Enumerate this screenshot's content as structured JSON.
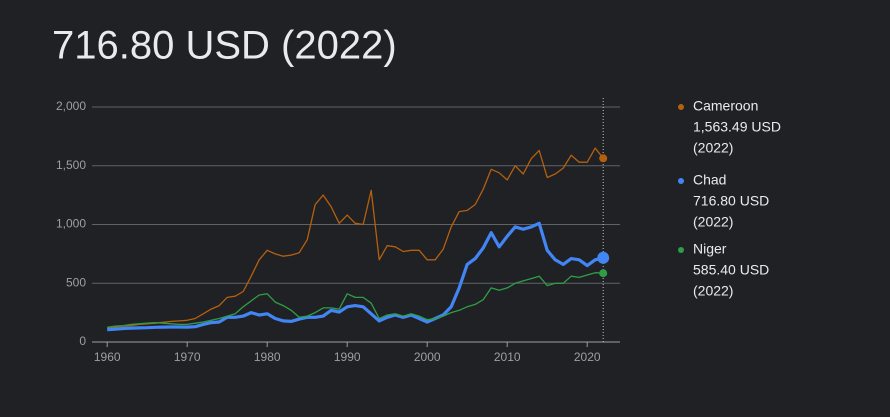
{
  "chart_data": {
    "type": "line",
    "title": "716.80 USD (2022)",
    "x": [
      1960,
      1961,
      1962,
      1963,
      1964,
      1965,
      1966,
      1967,
      1968,
      1969,
      1970,
      1971,
      1972,
      1973,
      1974,
      1975,
      1976,
      1977,
      1978,
      1979,
      1980,
      1981,
      1982,
      1983,
      1984,
      1985,
      1986,
      1987,
      1988,
      1989,
      1990,
      1991,
      1992,
      1993,
      1994,
      1995,
      1996,
      1997,
      1998,
      1999,
      2000,
      2001,
      2002,
      2003,
      2004,
      2005,
      2006,
      2007,
      2008,
      2009,
      2010,
      2011,
      2012,
      2013,
      2014,
      2015,
      2016,
      2017,
      2018,
      2019,
      2020,
      2021,
      2022
    ],
    "series": [
      {
        "name": "Cameroon",
        "color": "#b5600f",
        "width": 1.3,
        "legend_value": "1,563.49 USD",
        "legend_date": "(2022)",
        "values": [
          120,
          128,
          135,
          140,
          150,
          155,
          160,
          168,
          175,
          180,
          185,
          200,
          240,
          280,
          310,
          380,
          390,
          430,
          560,
          700,
          780,
          750,
          730,
          740,
          760,
          870,
          1170,
          1250,
          1150,
          1010,
          1080,
          1010,
          1000,
          1290,
          700,
          820,
          810,
          770,
          780,
          780,
          700,
          700,
          790,
          980,
          1110,
          1120,
          1170,
          1300,
          1470,
          1440,
          1380,
          1500,
          1430,
          1560,
          1630,
          1400,
          1430,
          1480,
          1590,
          1530,
          1530,
          1650,
          1563.49
        ]
      },
      {
        "name": "Chad",
        "color": "#4285f4",
        "width": 3.2,
        "legend_value": "716.80 USD",
        "legend_date": "(2022)",
        "values": [
          105,
          110,
          115,
          118,
          120,
          122,
          125,
          127,
          128,
          128,
          127,
          130,
          150,
          165,
          170,
          210,
          210,
          220,
          250,
          230,
          240,
          200,
          180,
          175,
          195,
          210,
          210,
          220,
          270,
          255,
          300,
          310,
          300,
          240,
          180,
          210,
          230,
          210,
          230,
          200,
          170,
          200,
          230,
          300,
          460,
          660,
          710,
          800,
          930,
          810,
          900,
          980,
          960,
          980,
          1010,
          780,
          700,
          660,
          710,
          700,
          650,
          700,
          716.8
        ]
      },
      {
        "name": "Niger",
        "color": "#2e9e46",
        "width": 1.3,
        "legend_value": "585.40 USD",
        "legend_date": "(2022)",
        "values": [
          125,
          135,
          140,
          150,
          155,
          160,
          165,
          160,
          155,
          150,
          150,
          160,
          170,
          185,
          200,
          220,
          240,
          300,
          350,
          400,
          410,
          340,
          310,
          270,
          210,
          220,
          250,
          290,
          290,
          280,
          410,
          380,
          380,
          330,
          200,
          230,
          240,
          220,
          240,
          220,
          190,
          200,
          220,
          250,
          270,
          300,
          320,
          360,
          460,
          440,
          460,
          500,
          520,
          540,
          560,
          480,
          500,
          500,
          560,
          550,
          570,
          590,
          585.4
        ]
      }
    ],
    "xlim": [
      1958.1,
      2024.1
    ],
    "xticks": [
      1960,
      1970,
      1980,
      1990,
      2000,
      2010,
      2020
    ],
    "ylim": [
      0,
      2000
    ],
    "yticks": [
      0,
      500,
      {
        "value": 1000,
        "label": "1,000"
      },
      {
        "value": 1500,
        "label": "1,500"
      },
      {
        "value": 2000,
        "label": "2,000"
      }
    ],
    "grid": true,
    "cursor_x": 2022
  }
}
